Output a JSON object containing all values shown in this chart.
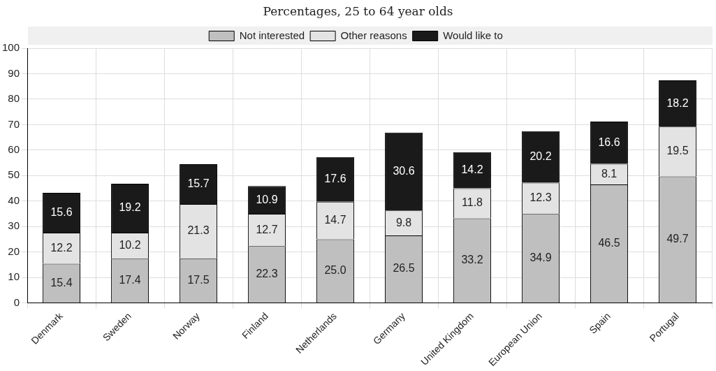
{
  "chart_data": {
    "type": "bar",
    "subtitle": "Percentages, 25 to 64 year olds",
    "stacked": true,
    "categories": [
      "Denmark",
      "Sweden",
      "Norway",
      "Finland",
      "Netherlands",
      "Germany",
      "United Kingdom",
      "European Union",
      "Spain",
      "Portugal"
    ],
    "series": [
      {
        "name": "Not interested",
        "color": "#bfbfbf",
        "values": [
          15.4,
          17.4,
          17.5,
          22.3,
          25.0,
          26.5,
          33.2,
          34.9,
          46.5,
          49.7
        ],
        "value_labels": [
          "15.4",
          "17.4",
          "17.5",
          "22.3",
          "25.0",
          "26.5",
          "33.2",
          "34.9",
          "46.5",
          "49.7"
        ]
      },
      {
        "name": "Other reasons",
        "color": "#e3e3e3",
        "values": [
          12.2,
          10.2,
          21.3,
          12.7,
          14.7,
          9.8,
          11.8,
          12.3,
          8.1,
          19.5
        ],
        "value_labels": [
          "12.2",
          "10.2",
          "21.3",
          "12.7",
          "14.7",
          "9.8",
          "11.8",
          "12.3",
          "8.1",
          "19.5"
        ]
      },
      {
        "name": "Would like to",
        "color": "#1a1a1a",
        "values": [
          15.6,
          19.2,
          15.7,
          10.9,
          17.6,
          30.6,
          14.2,
          20.2,
          16.6,
          18.2
        ],
        "value_labels": [
          "15.6",
          "19.2",
          "15.7",
          "10.9",
          "17.6",
          "30.6",
          "14.2",
          "20.2",
          "16.6",
          "18.2"
        ]
      }
    ],
    "ylim": [
      0,
      100
    ],
    "yticks": [
      0,
      10,
      20,
      30,
      40,
      50,
      60,
      70,
      80,
      90,
      100
    ],
    "grid": true,
    "legend": "top"
  }
}
